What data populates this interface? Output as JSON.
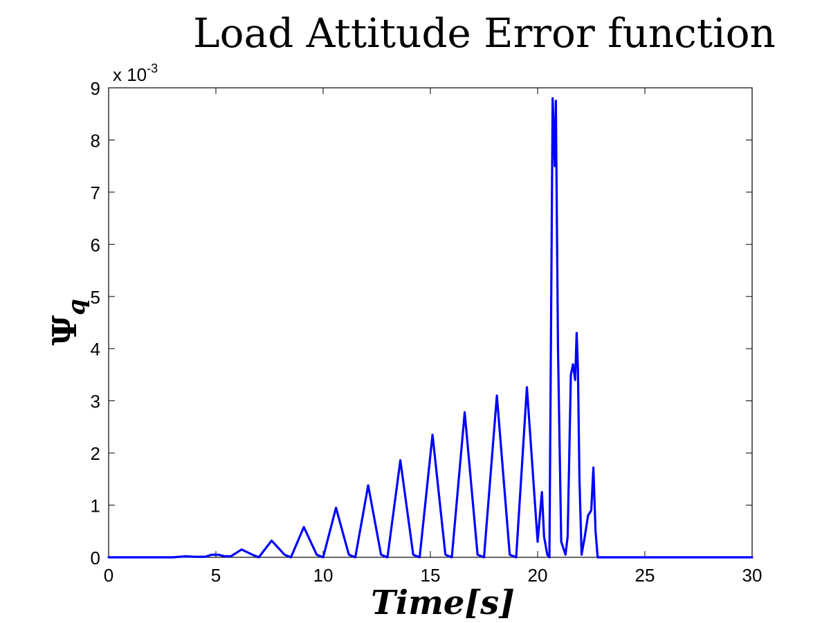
{
  "chart_data": {
    "type": "line",
    "title": "Load Attitude Error function",
    "xlabel": "Time[s]",
    "ylabel": "Ψ",
    "ylabel_subscript": "q",
    "y_exponent_label": "x 10",
    "y_exponent_power": "-3",
    "xlim": [
      0,
      30
    ],
    "ylim": [
      0,
      9
    ],
    "x_ticks": [
      "0",
      "5",
      "10",
      "15",
      "20",
      "25",
      "30"
    ],
    "y_ticks": [
      "0",
      "1",
      "2",
      "3",
      "4",
      "5",
      "6",
      "7",
      "8",
      "9"
    ],
    "grid": false,
    "series": [
      {
        "color": "#0000ff",
        "x": [
          0,
          3.0,
          3.3,
          3.6,
          4.0,
          4.5,
          4.8,
          5.1,
          5.4,
          5.7,
          6.2,
          6.7,
          7.0,
          7.6,
          8.2,
          8.5,
          9.1,
          9.7,
          10.0,
          10.6,
          11.2,
          11.5,
          12.1,
          12.7,
          13.0,
          13.6,
          14.2,
          14.5,
          15.1,
          15.7,
          16.0,
          16.6,
          17.2,
          17.5,
          18.1,
          18.7,
          19.0,
          19.5,
          20.0,
          20.2,
          20.3,
          20.45,
          20.55,
          20.7,
          20.8,
          20.85,
          20.95,
          21.1,
          21.3,
          21.4,
          21.55,
          21.65,
          21.75,
          21.82,
          21.88,
          21.95,
          22.05,
          22.2,
          22.35,
          22.5,
          22.6,
          22.7,
          22.8,
          23.0,
          30
        ],
        "values": [
          0,
          0,
          0.01,
          0.02,
          0.01,
          0.01,
          0.05,
          0.05,
          0.02,
          0.02,
          0.15,
          0.05,
          0,
          0.32,
          0.05,
          0,
          0.58,
          0.05,
          0,
          0.95,
          0.05,
          0,
          1.38,
          0.05,
          0,
          1.86,
          0.05,
          0,
          2.35,
          0.05,
          0,
          2.78,
          0.05,
          0,
          3.1,
          0.05,
          0,
          3.26,
          0.3,
          1.25,
          0.4,
          0.05,
          0,
          8.8,
          7.5,
          8.75,
          4.0,
          0.3,
          0.05,
          0.4,
          3.5,
          3.7,
          3.4,
          4.3,
          3.6,
          1.5,
          0.05,
          0.4,
          0.8,
          0.9,
          1.72,
          0.5,
          0,
          0,
          0
        ]
      }
    ]
  }
}
